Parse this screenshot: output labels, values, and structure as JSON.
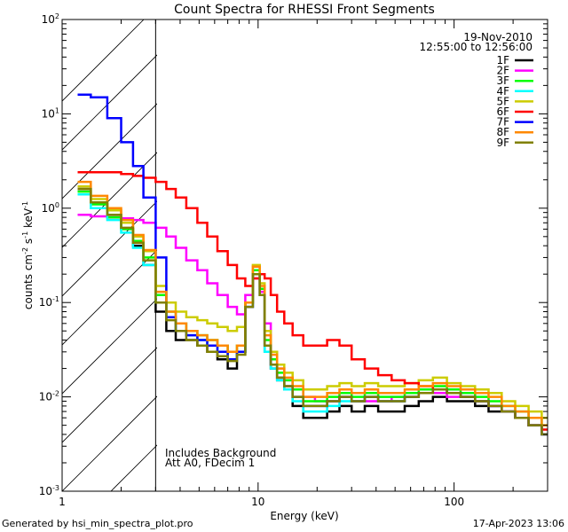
{
  "chart_data": {
    "type": "line",
    "title": "Count Spectra for RHESSI Front Segments",
    "xlabel": "Energy (keV)",
    "ylabel_parts": [
      "counts cm",
      "-2",
      " s",
      "-1",
      " keV",
      "-1"
    ],
    "xscale": "log",
    "yscale": "log",
    "xlim": [
      1,
      300
    ],
    "ylim": [
      0.001,
      100
    ],
    "x_ticks": [
      {
        "value": 1,
        "label": "1"
      },
      {
        "value": 10,
        "label": "10"
      },
      {
        "value": 100,
        "label": "100"
      }
    ],
    "y_ticks": [
      {
        "value": 0.001,
        "base": "10",
        "exp": "-3"
      },
      {
        "value": 0.01,
        "base": "10",
        "exp": "-2"
      },
      {
        "value": 0.1,
        "base": "10",
        "exp": "-1"
      },
      {
        "value": 1,
        "base": "10",
        "exp": "0"
      },
      {
        "value": 10,
        "base": "10",
        "exp": "1"
      },
      {
        "value": 100,
        "base": "10",
        "exp": "2"
      }
    ],
    "date": "19-Nov-2010",
    "time_range": "12:55:00 to 12:56:00",
    "notes": [
      "Includes Background",
      "Att A0, FDecim 1"
    ],
    "shaded_region_below_keV": 3,
    "energy_bins": [
      1.2,
      1.4,
      1.7,
      2.0,
      2.3,
      2.6,
      3.0,
      3.4,
      3.8,
      4.3,
      4.9,
      5.5,
      6.2,
      7.0,
      7.8,
      8.6,
      9.4,
      10.2,
      10.8,
      11.6,
      12.5,
      13.6,
      15.0,
      17.0,
      19.5,
      22.5,
      26.0,
      30.0,
      35.0,
      41.0,
      48.0,
      56.0,
      66.0,
      78.0,
      92.0,
      108.0,
      128.0,
      150.0,
      175.0,
      205.0,
      240.0,
      280.0
    ],
    "series": [
      {
        "name": "1F",
        "color": "#000000",
        "values": [
          1.6,
          1.1,
          0.8,
          0.6,
          0.4,
          0.25,
          0.08,
          0.05,
          0.04,
          0.04,
          0.035,
          0.03,
          0.025,
          0.02,
          0.03,
          0.1,
          0.2,
          0.12,
          0.03,
          0.02,
          0.015,
          0.012,
          0.008,
          0.006,
          0.006,
          0.007,
          0.008,
          0.007,
          0.008,
          0.007,
          0.007,
          0.008,
          0.009,
          0.01,
          0.009,
          0.009,
          0.008,
          0.007,
          0.007,
          0.006,
          0.005,
          0.004
        ]
      },
      {
        "name": "2F",
        "color": "#ff00ff",
        "values": [
          0.85,
          0.82,
          0.8,
          0.78,
          0.75,
          0.7,
          0.62,
          0.5,
          0.38,
          0.28,
          0.22,
          0.16,
          0.12,
          0.09,
          0.075,
          0.12,
          0.18,
          0.13,
          0.06,
          0.03,
          0.02,
          0.015,
          0.012,
          0.01,
          0.009,
          0.009,
          0.01,
          0.009,
          0.009,
          0.009,
          0.01,
          0.01,
          0.011,
          0.011,
          0.01,
          0.01,
          0.009,
          0.008,
          0.007,
          0.006,
          0.005,
          0.004
        ]
      },
      {
        "name": "3F",
        "color": "#00ff00",
        "values": [
          1.5,
          1.1,
          0.8,
          0.6,
          0.45,
          0.3,
          0.12,
          0.08,
          0.06,
          0.05,
          0.045,
          0.04,
          0.035,
          0.03,
          0.035,
          0.1,
          0.22,
          0.14,
          0.04,
          0.025,
          0.018,
          0.015,
          0.012,
          0.009,
          0.009,
          0.01,
          0.011,
          0.01,
          0.011,
          0.01,
          0.01,
          0.011,
          0.012,
          0.013,
          0.012,
          0.011,
          0.01,
          0.009,
          0.008,
          0.007,
          0.006,
          0.005
        ]
      },
      {
        "name": "4F",
        "color": "#00ffff",
        "values": [
          1.4,
          1.0,
          0.75,
          0.55,
          0.38,
          0.25,
          0.1,
          0.07,
          0.05,
          0.045,
          0.04,
          0.035,
          0.03,
          0.025,
          0.03,
          0.09,
          0.2,
          0.12,
          0.03,
          0.02,
          0.015,
          0.012,
          0.009,
          0.007,
          0.007,
          0.008,
          0.009,
          0.009,
          0.01,
          0.009,
          0.009,
          0.01,
          0.011,
          0.012,
          0.011,
          0.01,
          0.009,
          0.008,
          0.007,
          0.006,
          0.005,
          0.004
        ]
      },
      {
        "name": "5F",
        "color": "#cccc00",
        "values": [
          1.7,
          1.25,
          0.95,
          0.7,
          0.5,
          0.35,
          0.15,
          0.1,
          0.08,
          0.07,
          0.065,
          0.06,
          0.055,
          0.05,
          0.055,
          0.1,
          0.25,
          0.16,
          0.05,
          0.03,
          0.022,
          0.018,
          0.015,
          0.012,
          0.012,
          0.013,
          0.014,
          0.013,
          0.014,
          0.013,
          0.013,
          0.014,
          0.015,
          0.016,
          0.014,
          0.013,
          0.012,
          0.011,
          0.009,
          0.008,
          0.007,
          0.006
        ]
      },
      {
        "name": "6F",
        "color": "#ff0000",
        "values": [
          2.4,
          2.4,
          2.4,
          2.3,
          2.2,
          2.1,
          1.9,
          1.6,
          1.3,
          1.0,
          0.7,
          0.5,
          0.35,
          0.25,
          0.18,
          0.15,
          0.18,
          0.2,
          0.18,
          0.12,
          0.08,
          0.06,
          0.045,
          0.035,
          0.035,
          0.04,
          0.035,
          0.025,
          0.02,
          0.017,
          0.015,
          0.014,
          0.013,
          0.012,
          0.011,
          0.01,
          0.009,
          0.008,
          0.007,
          0.006,
          0.005,
          0.0045
        ]
      },
      {
        "name": "7F",
        "color": "#0000ff",
        "values": [
          16,
          15,
          9,
          5,
          2.8,
          1.3,
          0.3,
          0.07,
          0.05,
          0.045,
          0.04,
          0.035,
          0.03,
          0.025,
          0.03,
          0.09,
          0.2,
          0.12,
          0.035,
          0.022,
          0.016,
          0.013,
          0.01,
          0.008,
          0.008,
          0.009,
          0.01,
          0.009,
          0.01,
          0.009,
          0.009,
          0.01,
          0.011,
          0.012,
          0.011,
          0.01,
          0.009,
          0.008,
          0.007,
          0.006,
          0.005,
          0.004
        ]
      },
      {
        "name": "8F",
        "color": "#ff8800",
        "values": [
          1.9,
          1.35,
          1.0,
          0.75,
          0.52,
          0.36,
          0.13,
          0.08,
          0.06,
          0.05,
          0.045,
          0.04,
          0.035,
          0.03,
          0.035,
          0.1,
          0.24,
          0.15,
          0.045,
          0.028,
          0.02,
          0.016,
          0.013,
          0.01,
          0.01,
          0.011,
          0.012,
          0.011,
          0.012,
          0.011,
          0.011,
          0.012,
          0.013,
          0.014,
          0.013,
          0.012,
          0.011,
          0.01,
          0.008,
          0.007,
          0.006,
          0.005
        ]
      },
      {
        "name": "9F",
        "color": "#808000",
        "values": [
          1.6,
          1.15,
          0.85,
          0.62,
          0.43,
          0.28,
          0.1,
          0.065,
          0.05,
          0.04,
          0.035,
          0.03,
          0.027,
          0.024,
          0.028,
          0.09,
          0.2,
          0.12,
          0.035,
          0.022,
          0.016,
          0.013,
          0.01,
          0.008,
          0.008,
          0.009,
          0.01,
          0.009,
          0.01,
          0.009,
          0.009,
          0.01,
          0.011,
          0.012,
          0.011,
          0.01,
          0.009,
          0.008,
          0.007,
          0.006,
          0.005,
          0.004
        ]
      }
    ]
  },
  "footer": {
    "generated_by": "Generated by hsi_min_spectra_plot.pro",
    "timestamp": "17-Apr-2023 13:06"
  }
}
